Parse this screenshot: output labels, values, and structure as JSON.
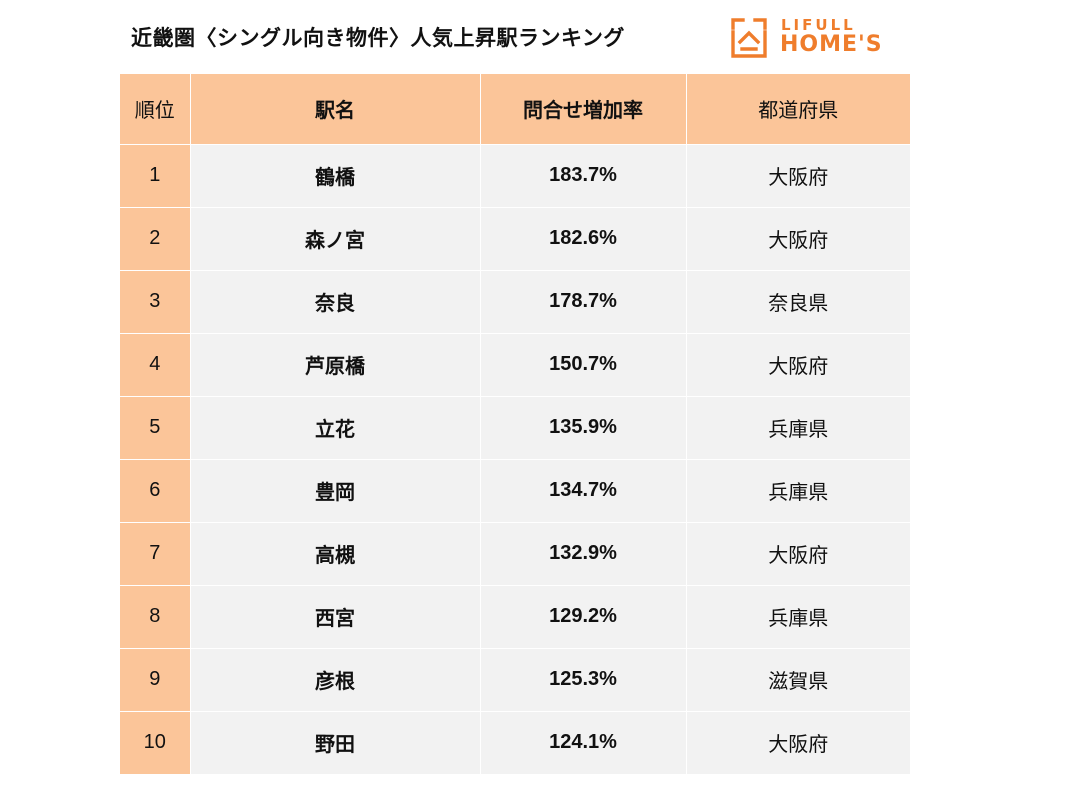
{
  "title": "近畿圏〈シングル向き物件〉人気上昇駅ランキング",
  "logo": {
    "top_text": "LIFULL",
    "main_text": "HOME'S",
    "brand_color": "#ef7d2c"
  },
  "colors": {
    "header_bg": "#fbc599",
    "rank_bg": "#fbc599",
    "row_bg": "#f2f2f2"
  },
  "table": {
    "headers": {
      "rank": "順位",
      "station": "駅名",
      "rate": "問合せ増加率",
      "prefecture": "都道府県"
    },
    "rows": [
      {
        "rank": "1",
        "station": "鶴橋",
        "rate": "183.7%",
        "prefecture": "大阪府"
      },
      {
        "rank": "2",
        "station": "森ノ宮",
        "rate": "182.6%",
        "prefecture": "大阪府"
      },
      {
        "rank": "3",
        "station": "奈良",
        "rate": "178.7%",
        "prefecture": "奈良県"
      },
      {
        "rank": "4",
        "station": "芦原橋",
        "rate": "150.7%",
        "prefecture": "大阪府"
      },
      {
        "rank": "5",
        "station": "立花",
        "rate": "135.9%",
        "prefecture": "兵庫県"
      },
      {
        "rank": "6",
        "station": "豊岡",
        "rate": "134.7%",
        "prefecture": "兵庫県"
      },
      {
        "rank": "7",
        "station": "高槻",
        "rate": "132.9%",
        "prefecture": "大阪府"
      },
      {
        "rank": "8",
        "station": "西宮",
        "rate": "129.2%",
        "prefecture": "兵庫県"
      },
      {
        "rank": "9",
        "station": "彦根",
        "rate": "125.3%",
        "prefecture": "滋賀県"
      },
      {
        "rank": "10",
        "station": "野田",
        "rate": "124.1%",
        "prefecture": "大阪府"
      }
    ]
  }
}
